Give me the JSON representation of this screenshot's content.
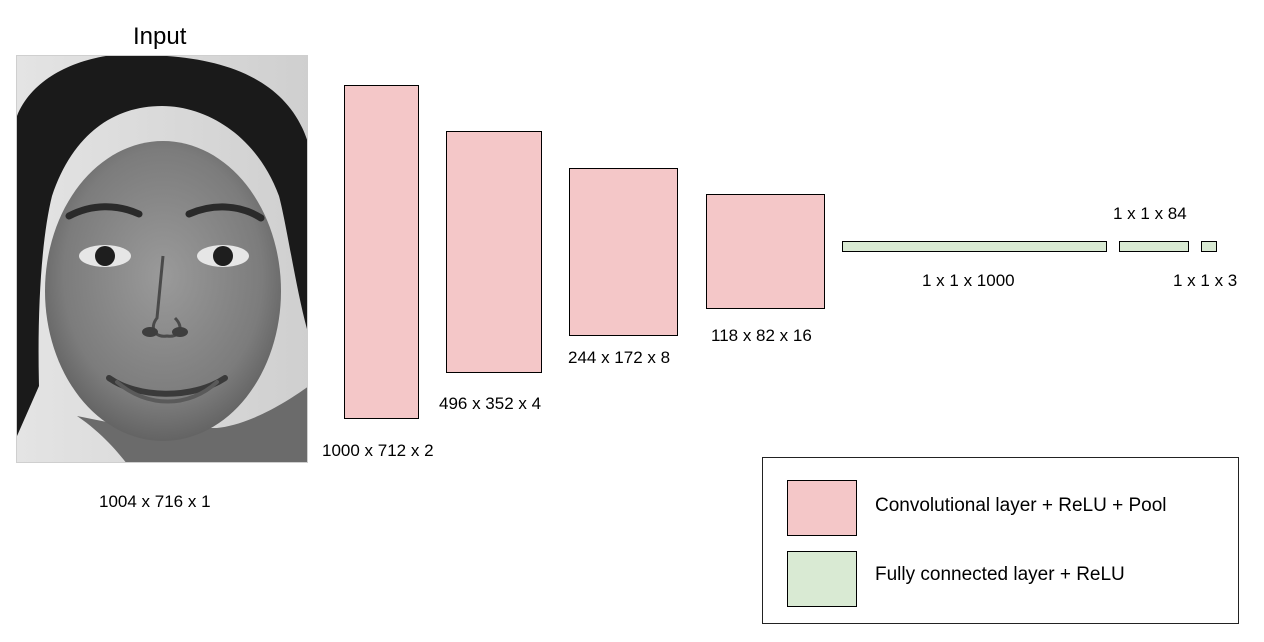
{
  "input": {
    "title": "Input",
    "dims": "1004 x 716 x 1"
  },
  "conv_layers": [
    {
      "dims": "1000 x 712 x 2"
    },
    {
      "dims": "496 x 352 x 4"
    },
    {
      "dims": "244 x 172 x 8"
    },
    {
      "dims": "118 x 82 x 16"
    }
  ],
  "fc_layers": [
    {
      "dims": "1 x 1 x 1000"
    },
    {
      "dims": "1 x 1 x 84"
    },
    {
      "dims": "1 x 1 x 3"
    }
  ],
  "legend": {
    "conv_label": "Convolutional layer + ReLU + Pool",
    "fc_label": "Fully connected layer + ReLU"
  },
  "colors": {
    "conv": "#f4c7c8",
    "fc": "#d9ead3",
    "outline": "#000000"
  }
}
